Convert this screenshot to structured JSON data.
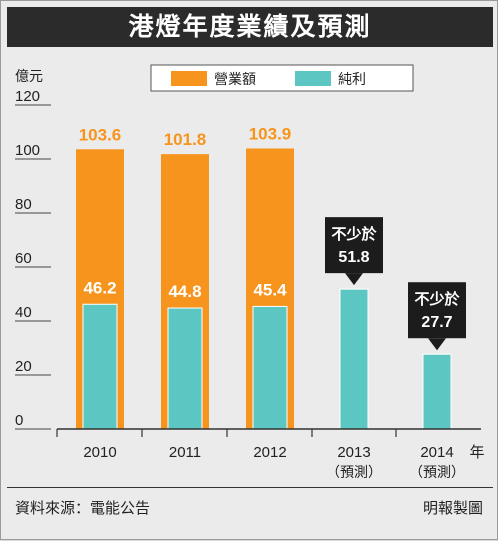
{
  "header": {
    "title": "港燈年度業績及預測"
  },
  "footer": {
    "source": "資料來源：電能公告",
    "credit": "明報製圖"
  },
  "chart_data": {
    "type": "bar",
    "title": "港燈年度業績及預測",
    "ylabel": "億元",
    "xlabel": "",
    "x_unit_label": "年",
    "ylim": [
      0,
      120
    ],
    "yticks": [
      0,
      20,
      40,
      60,
      80,
      100,
      120
    ],
    "grid": false,
    "legend_position": "top",
    "categories": [
      "2010",
      "2011",
      "2012",
      "2013",
      "2014"
    ],
    "category_sublabels": [
      "",
      "",
      "",
      "（預測）",
      "（預測）"
    ],
    "series": [
      {
        "name": "營業額",
        "color": "#f7941d",
        "values": [
          103.6,
          101.8,
          103.9,
          null,
          null
        ]
      },
      {
        "name": "純利",
        "color": "#5bc6c2",
        "values": [
          46.2,
          44.8,
          45.4,
          51.8,
          27.7
        ]
      }
    ],
    "annotations": [
      {
        "category": "2013",
        "prefix": "不少於",
        "value_text": "51.8"
      },
      {
        "category": "2014",
        "prefix": "不少於",
        "value_text": "27.7"
      }
    ],
    "colors": {
      "revenue": "#f7941d",
      "profit": "#5bc6c2",
      "callout": "#1c1c1c"
    }
  }
}
